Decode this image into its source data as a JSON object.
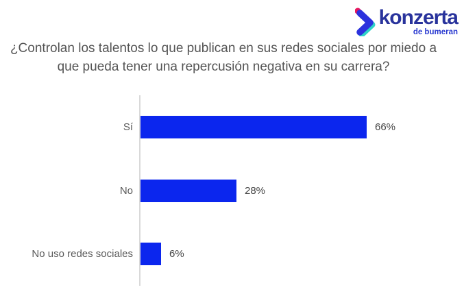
{
  "logo": {
    "brand": "konzerta",
    "sub_brand": "de bumeran",
    "colors": {
      "wordmark": "#29339c",
      "subtitle": "#2b3bd0",
      "chevron_blue": "#2c32dd",
      "chevron_pink": "#e8175d",
      "chevron_teal": "#2fd3c7"
    }
  },
  "title": "¿Controlan los talentos lo que publican en sus redes sociales por miedo a que pueda tener una repercusión negativa en su carrera?",
  "chart_data": {
    "type": "bar",
    "orientation": "horizontal",
    "title": "¿Controlan los talentos lo que publican en sus redes sociales por miedo a que pueda tener una repercusión negativa en su carrera?",
    "categories": [
      "Sí",
      "No",
      "No uso redes sociales"
    ],
    "values": [
      66,
      28,
      6
    ],
    "value_labels": [
      "66%",
      "28%",
      "6%"
    ],
    "xlabel": "",
    "ylabel": "",
    "xlim": [
      0,
      100
    ],
    "grid": false,
    "legend": false,
    "bar_color": "#0b26ee",
    "axis_color": "#d9d9d9",
    "label_color": "#595959",
    "value_label_color": "#444444"
  }
}
